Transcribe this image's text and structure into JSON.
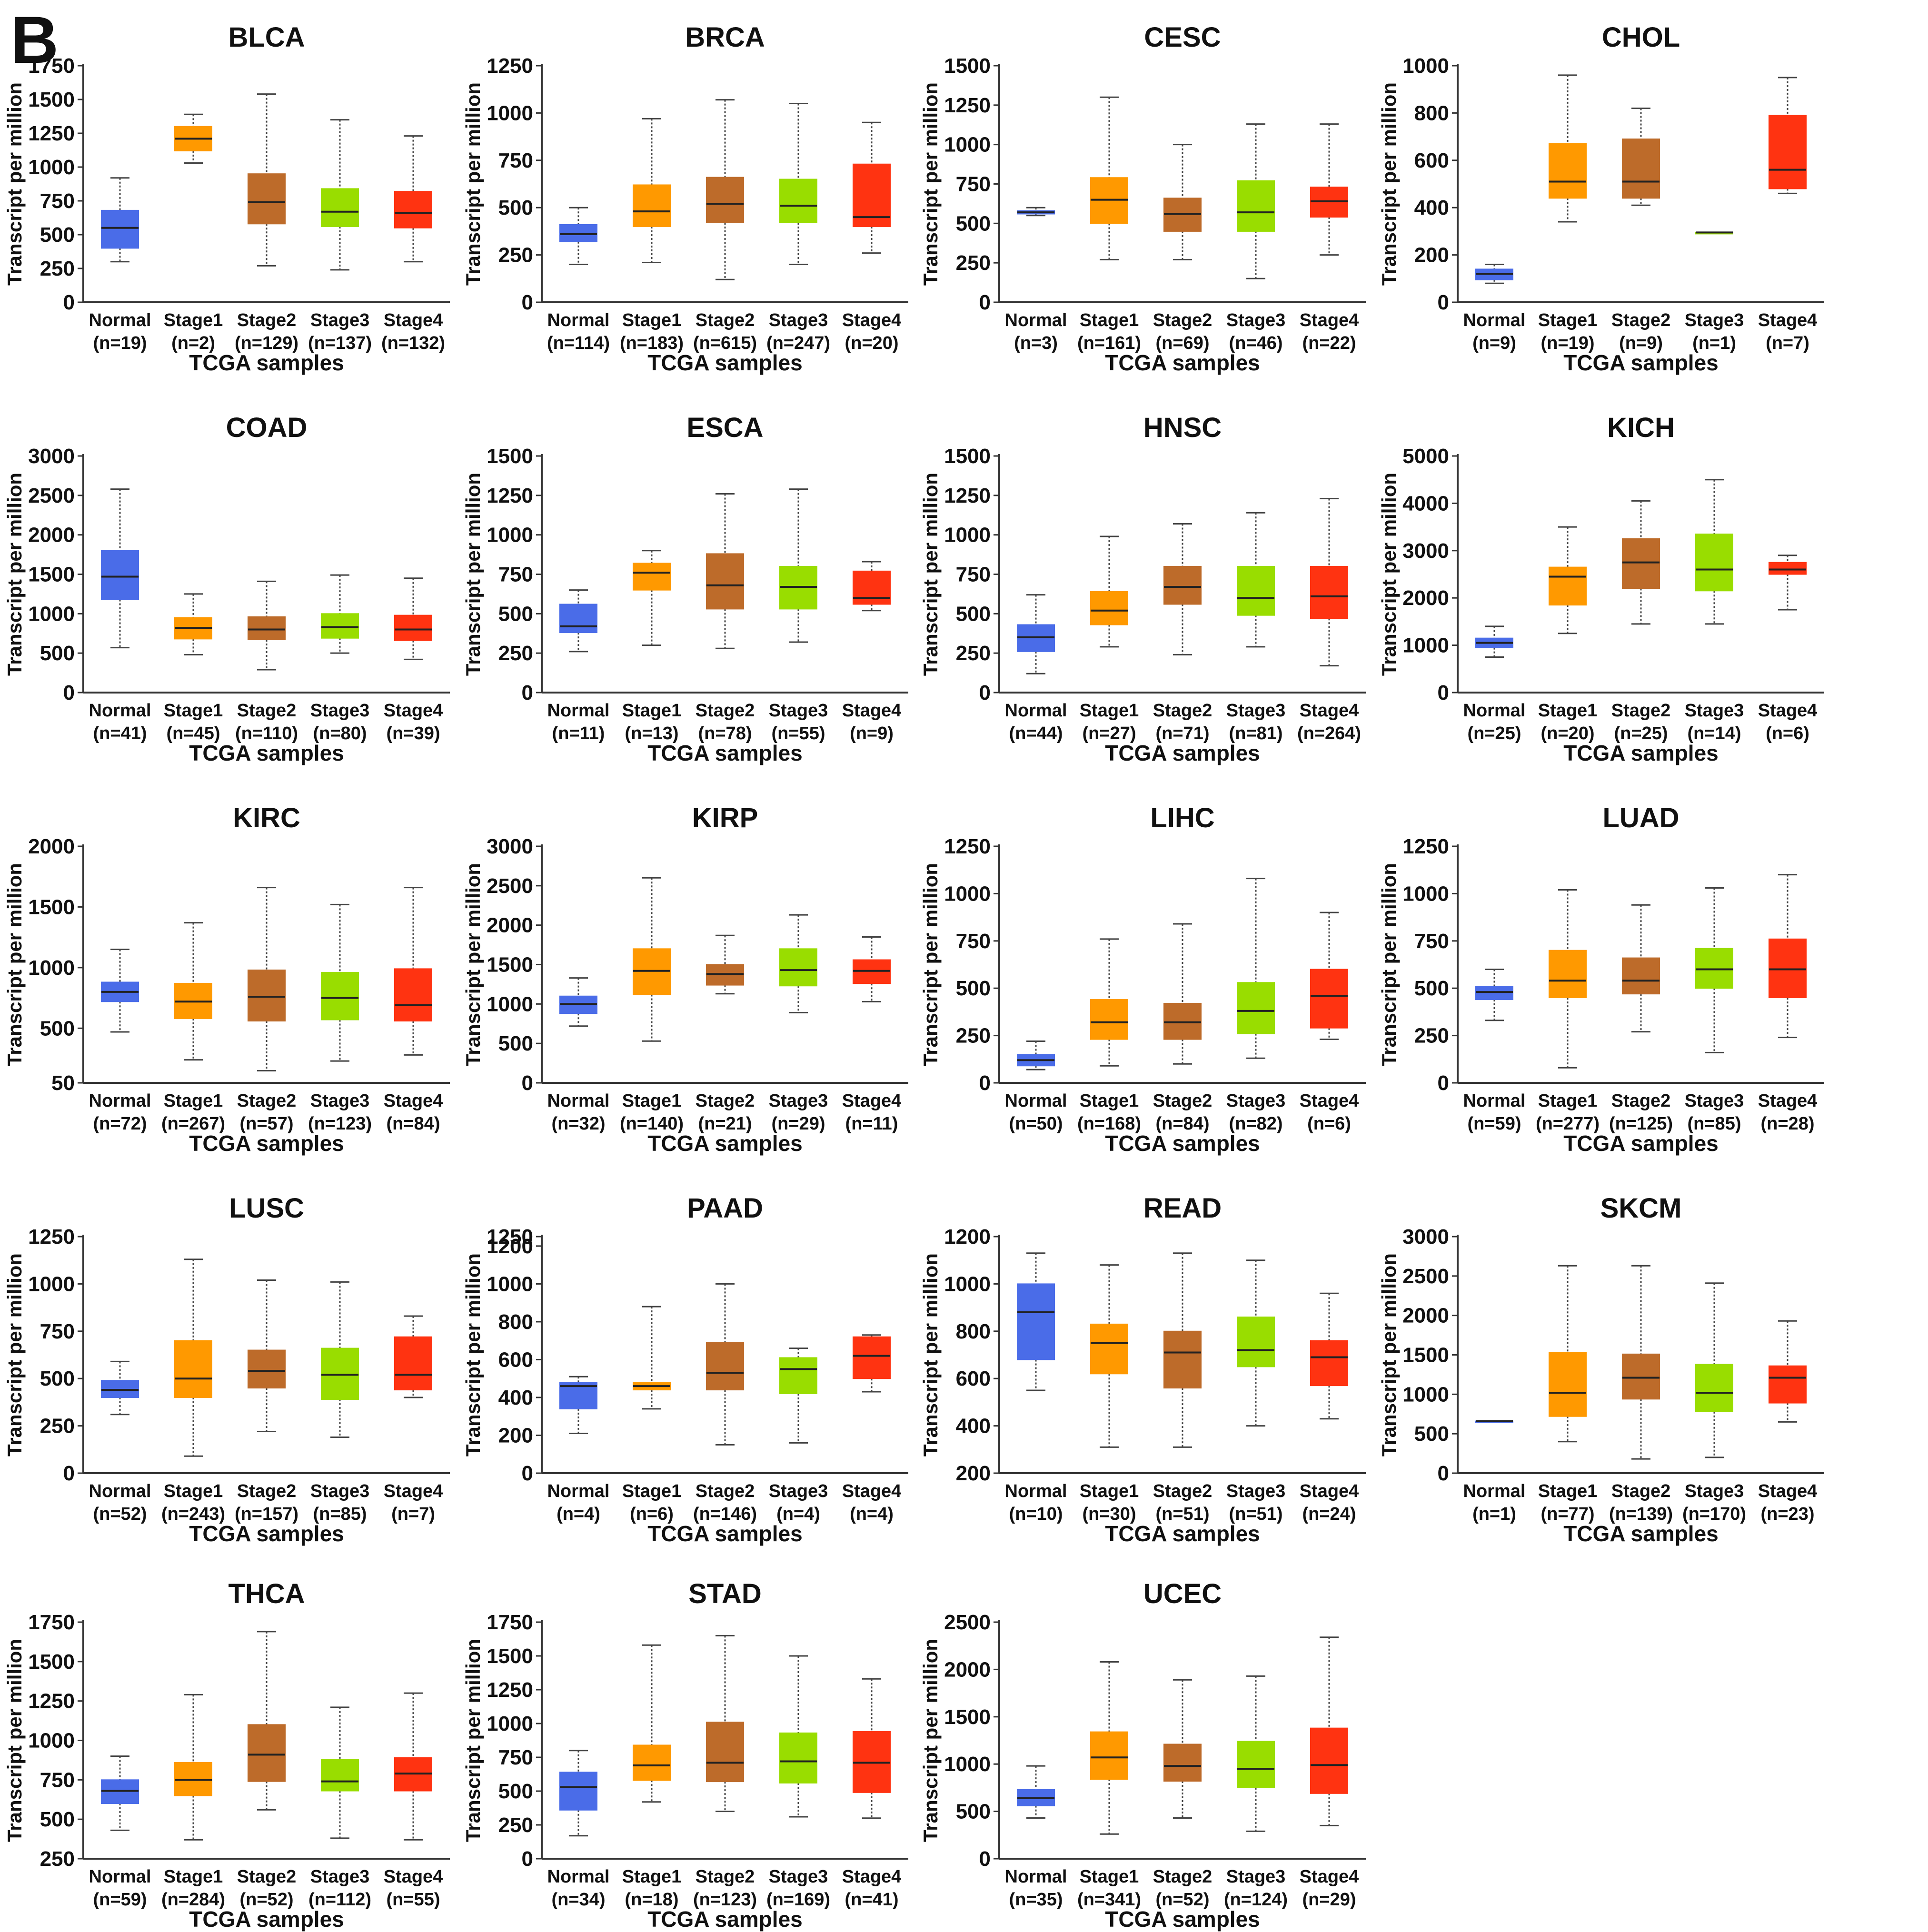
{
  "panel_label": "B",
  "xlabel": "TCGA samples",
  "ylabel": "Transcript per million",
  "colors": {
    "Normal": "#4A6CE8",
    "Stage1": "#FF9900",
    "Stage2": "#BD6B2A",
    "Stage3": "#99DD00",
    "Stage4": "#FF3311",
    "whisker": "#444444",
    "axis": "#333333",
    "median": "#222222"
  },
  "chart_data": [
    {
      "type": "box",
      "title": "BLCA",
      "yticks": [
        0,
        250,
        500,
        750,
        1000,
        1250,
        1500,
        1750
      ],
      "ylim": [
        0,
        1750
      ],
      "categories": [
        "Normal",
        "Stage1",
        "Stage2",
        "Stage3",
        "Stage4"
      ],
      "counts": [
        "(n=19)",
        "(n=2)",
        "(n=129)",
        "(n=137)",
        "(n=132)"
      ],
      "boxes": [
        [
          300,
          400,
          550,
          680,
          920
        ],
        [
          1030,
          1120,
          1210,
          1300,
          1390
        ],
        [
          270,
          580,
          740,
          950,
          1540
        ],
        [
          240,
          560,
          670,
          840,
          1350
        ],
        [
          300,
          550,
          660,
          820,
          1230
        ]
      ]
    },
    {
      "type": "box",
      "title": "BRCA",
      "yticks": [
        0,
        250,
        500,
        750,
        1000,
        1250
      ],
      "ylim": [
        0,
        1250
      ],
      "categories": [
        "Normal",
        "Stage1",
        "Stage2",
        "Stage3",
        "Stage4"
      ],
      "counts": [
        "(n=114)",
        "(n=183)",
        "(n=615)",
        "(n=247)",
        "(n=20)"
      ],
      "boxes": [
        [
          200,
          320,
          360,
          410,
          500
        ],
        [
          210,
          400,
          480,
          620,
          970
        ],
        [
          120,
          420,
          520,
          660,
          1070
        ],
        [
          200,
          420,
          510,
          650,
          1050
        ],
        [
          260,
          400,
          450,
          730,
          950
        ]
      ]
    },
    {
      "type": "box",
      "title": "CESC",
      "yticks": [
        0,
        250,
        500,
        750,
        1000,
        1250,
        1500
      ],
      "ylim": [
        0,
        1500
      ],
      "categories": [
        "Normal",
        "Stage1",
        "Stage2",
        "Stage3",
        "Stage4"
      ],
      "counts": [
        "(n=3)",
        "(n=161)",
        "(n=69)",
        "(n=46)",
        "(n=22)"
      ],
      "boxes": [
        [
          550,
          560,
          570,
          580,
          600
        ],
        [
          270,
          500,
          650,
          790,
          1300
        ],
        [
          270,
          450,
          560,
          660,
          1000
        ],
        [
          150,
          450,
          570,
          770,
          1130
        ],
        [
          300,
          540,
          640,
          730,
          1130
        ]
      ]
    },
    {
      "type": "box",
      "title": "CHOL",
      "yticks": [
        0,
        200,
        400,
        600,
        800,
        1000
      ],
      "ylim": [
        0,
        1000
      ],
      "categories": [
        "Normal",
        "Stage1",
        "Stage2",
        "Stage3",
        "Stage4"
      ],
      "counts": [
        "(n=9)",
        "(n=19)",
        "(n=9)",
        "(n=1)",
        "(n=7)"
      ],
      "boxes": [
        [
          80,
          95,
          120,
          140,
          160
        ],
        [
          340,
          440,
          510,
          670,
          960
        ],
        [
          410,
          440,
          510,
          690,
          820
        ],
        [
          295,
          295,
          295,
          295,
          295
        ],
        [
          460,
          480,
          560,
          790,
          950
        ]
      ]
    },
    {
      "type": "box",
      "title": "COAD",
      "yticks": [
        0,
        500,
        1000,
        1500,
        2000,
        2500,
        3000
      ],
      "ylim": [
        0,
        3000
      ],
      "categories": [
        "Normal",
        "Stage1",
        "Stage2",
        "Stage3",
        "Stage4"
      ],
      "counts": [
        "(n=41)",
        "(n=45)",
        "(n=110)",
        "(n=80)",
        "(n=39)"
      ],
      "boxes": [
        [
          570,
          1180,
          1470,
          1800,
          2580
        ],
        [
          480,
          680,
          820,
          950,
          1250
        ],
        [
          290,
          670,
          800,
          960,
          1410
        ],
        [
          500,
          690,
          830,
          1000,
          1490
        ],
        [
          420,
          660,
          800,
          980,
          1450
        ]
      ]
    },
    {
      "type": "box",
      "title": "ESCA",
      "yticks": [
        0,
        250,
        500,
        750,
        1000,
        1250,
        1500
      ],
      "ylim": [
        0,
        1500
      ],
      "categories": [
        "Normal",
        "Stage1",
        "Stage2",
        "Stage3",
        "Stage4"
      ],
      "counts": [
        "(n=11)",
        "(n=13)",
        "(n=78)",
        "(n=55)",
        "(n=9)"
      ],
      "boxes": [
        [
          260,
          380,
          420,
          560,
          650
        ],
        [
          300,
          650,
          760,
          820,
          900
        ],
        [
          280,
          530,
          680,
          880,
          1260
        ],
        [
          320,
          530,
          670,
          800,
          1290
        ],
        [
          520,
          560,
          600,
          770,
          830
        ]
      ]
    },
    {
      "type": "box",
      "title": "HNSC",
      "yticks": [
        0,
        250,
        500,
        750,
        1000,
        1250,
        1500
      ],
      "ylim": [
        0,
        1500
      ],
      "categories": [
        "Normal",
        "Stage1",
        "Stage2",
        "Stage3",
        "Stage4"
      ],
      "counts": [
        "(n=44)",
        "(n=27)",
        "(n=71)",
        "(n=81)",
        "(n=264)"
      ],
      "boxes": [
        [
          120,
          260,
          350,
          430,
          620
        ],
        [
          290,
          430,
          520,
          640,
          990
        ],
        [
          240,
          560,
          670,
          800,
          1070
        ],
        [
          290,
          490,
          600,
          800,
          1140
        ],
        [
          170,
          470,
          610,
          800,
          1230
        ]
      ]
    },
    {
      "type": "box",
      "title": "KICH",
      "yticks": [
        0,
        1000,
        2000,
        3000,
        4000,
        5000
      ],
      "ylim": [
        0,
        5000
      ],
      "categories": [
        "Normal",
        "Stage1",
        "Stage2",
        "Stage3",
        "Stage4"
      ],
      "counts": [
        "(n=25)",
        "(n=20)",
        "(n=25)",
        "(n=14)",
        "(n=6)"
      ],
      "boxes": [
        [
          750,
          950,
          1050,
          1150,
          1400
        ],
        [
          1250,
          1850,
          2450,
          2650,
          3500
        ],
        [
          1450,
          2200,
          2750,
          3250,
          4050
        ],
        [
          1450,
          2150,
          2600,
          3350,
          4500
        ],
        [
          1750,
          2500,
          2600,
          2750,
          2900
        ]
      ]
    },
    {
      "type": "box",
      "title": "KIRC",
      "yticks": [
        50,
        500,
        1000,
        1500,
        2000
      ],
      "ylim": [
        50,
        2000
      ],
      "categories": [
        "Normal",
        "Stage1",
        "Stage2",
        "Stage3",
        "Stage4"
      ],
      "counts": [
        "(n=72)",
        "(n=267)",
        "(n=57)",
        "(n=123)",
        "(n=84)"
      ],
      "boxes": [
        [
          470,
          720,
          800,
          880,
          1150
        ],
        [
          240,
          580,
          720,
          870,
          1370
        ],
        [
          150,
          560,
          760,
          980,
          1660
        ],
        [
          230,
          570,
          750,
          960,
          1520
        ],
        [
          280,
          560,
          690,
          990,
          1660
        ]
      ]
    },
    {
      "type": "box",
      "title": "KIRP",
      "yticks": [
        0,
        500,
        1000,
        1500,
        2000,
        2500,
        3000
      ],
      "ylim": [
        0,
        3000
      ],
      "categories": [
        "Normal",
        "Stage1",
        "Stage2",
        "Stage3",
        "Stage4"
      ],
      "counts": [
        "(n=32)",
        "(n=140)",
        "(n=21)",
        "(n=29)",
        "(n=11)"
      ],
      "boxes": [
        [
          720,
          880,
          1000,
          1100,
          1330
        ],
        [
          530,
          1120,
          1420,
          1700,
          2600
        ],
        [
          1130,
          1240,
          1380,
          1500,
          1870
        ],
        [
          890,
          1230,
          1430,
          1700,
          2130
        ],
        [
          1030,
          1260,
          1420,
          1560,
          1850
        ]
      ]
    },
    {
      "type": "box",
      "title": "LIHC",
      "yticks": [
        0,
        250,
        500,
        750,
        1000,
        1250
      ],
      "ylim": [
        0,
        1250
      ],
      "categories": [
        "Normal",
        "Stage1",
        "Stage2",
        "Stage3",
        "Stage4"
      ],
      "counts": [
        "(n=50)",
        "(n=168)",
        "(n=84)",
        "(n=82)",
        "(n=6)"
      ],
      "boxes": [
        [
          70,
          90,
          120,
          150,
          220
        ],
        [
          90,
          230,
          320,
          440,
          760
        ],
        [
          100,
          230,
          320,
          420,
          840
        ],
        [
          130,
          260,
          380,
          530,
          1080
        ],
        [
          230,
          290,
          460,
          600,
          900
        ]
      ]
    },
    {
      "type": "box",
      "title": "LUAD",
      "yticks": [
        0,
        250,
        500,
        750,
        1000,
        1250
      ],
      "ylim": [
        0,
        1250
      ],
      "categories": [
        "Normal",
        "Stage1",
        "Stage2",
        "Stage3",
        "Stage4"
      ],
      "counts": [
        "(n=59)",
        "(n=277)",
        "(n=125)",
        "(n=85)",
        "(n=28)"
      ],
      "boxes": [
        [
          330,
          440,
          480,
          510,
          600
        ],
        [
          80,
          450,
          540,
          700,
          1020
        ],
        [
          270,
          470,
          540,
          660,
          940
        ],
        [
          160,
          500,
          600,
          710,
          1030
        ],
        [
          240,
          450,
          600,
          760,
          1100
        ]
      ]
    },
    {
      "type": "box",
      "title": "LUSC",
      "yticks": [
        0,
        250,
        500,
        750,
        1000,
        1250
      ],
      "ylim": [
        0,
        1250
      ],
      "categories": [
        "Normal",
        "Stage1",
        "Stage2",
        "Stage3",
        "Stage4"
      ],
      "counts": [
        "(n=52)",
        "(n=243)",
        "(n=157)",
        "(n=85)",
        "(n=7)"
      ],
      "boxes": [
        [
          310,
          400,
          440,
          490,
          590
        ],
        [
          90,
          400,
          500,
          700,
          1130
        ],
        [
          220,
          450,
          540,
          650,
          1020
        ],
        [
          190,
          390,
          520,
          660,
          1010
        ],
        [
          400,
          440,
          520,
          720,
          830
        ]
      ]
    },
    {
      "type": "box",
      "title": "PAAD",
      "yticks": [
        0,
        200,
        400,
        600,
        800,
        1000,
        1200,
        1250
      ],
      "ylim": [
        0,
        1250
      ],
      "categories": [
        "Normal",
        "Stage1",
        "Stage2",
        "Stage3",
        "Stage4"
      ],
      "counts": [
        "(n=4)",
        "(n=6)",
        "(n=146)",
        "(n=4)",
        "(n=4)"
      ],
      "boxes": [
        [
          210,
          340,
          460,
          480,
          510
        ],
        [
          340,
          440,
          460,
          480,
          880
        ],
        [
          150,
          440,
          530,
          690,
          1000
        ],
        [
          160,
          420,
          550,
          610,
          660
        ],
        [
          430,
          500,
          620,
          720,
          730
        ]
      ]
    },
    {
      "type": "box",
      "title": "READ",
      "yticks": [
        200,
        400,
        600,
        800,
        1000,
        1200
      ],
      "ylim": [
        200,
        1200
      ],
      "categories": [
        "Normal",
        "Stage1",
        "Stage2",
        "Stage3",
        "Stage4"
      ],
      "counts": [
        "(n=10)",
        "(n=30)",
        "(n=51)",
        "(n=51)",
        "(n=24)"
      ],
      "boxes": [
        [
          550,
          680,
          880,
          1000,
          1130
        ],
        [
          310,
          620,
          750,
          830,
          1080
        ],
        [
          310,
          560,
          710,
          800,
          1130
        ],
        [
          400,
          650,
          720,
          860,
          1100
        ],
        [
          430,
          570,
          690,
          760,
          960
        ]
      ]
    },
    {
      "type": "box",
      "title": "SKCM",
      "yticks": [
        0,
        500,
        1000,
        1500,
        2000,
        2500,
        3000
      ],
      "ylim": [
        0,
        3000
      ],
      "categories": [
        "Normal",
        "Stage1",
        "Stage2",
        "Stage3",
        "Stage4"
      ],
      "counts": [
        "(n=1)",
        "(n=77)",
        "(n=139)",
        "(n=170)",
        "(n=23)"
      ],
      "boxes": [
        [
          660,
          660,
          660,
          660,
          660
        ],
        [
          400,
          720,
          1020,
          1530,
          2630
        ],
        [
          180,
          940,
          1210,
          1510,
          2630
        ],
        [
          200,
          780,
          1020,
          1380,
          2410
        ],
        [
          650,
          890,
          1210,
          1360,
          1930
        ]
      ]
    },
    {
      "type": "box",
      "title": "THCA",
      "yticks": [
        250,
        500,
        750,
        1000,
        1250,
        1500,
        1750
      ],
      "ylim": [
        250,
        1750
      ],
      "categories": [
        "Normal",
        "Stage1",
        "Stage2",
        "Stage3",
        "Stage4"
      ],
      "counts": [
        "(n=59)",
        "(n=284)",
        "(n=52)",
        "(n=112)",
        "(n=55)"
      ],
      "boxes": [
        [
          430,
          600,
          680,
          750,
          900
        ],
        [
          370,
          650,
          750,
          860,
          1290
        ],
        [
          560,
          740,
          910,
          1100,
          1690
        ],
        [
          380,
          680,
          740,
          880,
          1210
        ],
        [
          370,
          680,
          790,
          890,
          1300
        ]
      ]
    },
    {
      "type": "box",
      "title": "STAD",
      "yticks": [
        0,
        250,
        500,
        750,
        1000,
        1250,
        1500,
        1750
      ],
      "ylim": [
        0,
        1750
      ],
      "categories": [
        "Normal",
        "Stage1",
        "Stage2",
        "Stage3",
        "Stage4"
      ],
      "counts": [
        "(n=34)",
        "(n=18)",
        "(n=123)",
        "(n=169)",
        "(n=41)"
      ],
      "boxes": [
        [
          170,
          360,
          530,
          640,
          800
        ],
        [
          420,
          580,
          690,
          840,
          1580
        ],
        [
          350,
          570,
          710,
          1010,
          1650
        ],
        [
          310,
          560,
          720,
          930,
          1500
        ],
        [
          300,
          490,
          710,
          940,
          1330
        ]
      ]
    },
    {
      "type": "box",
      "title": "UCEC",
      "yticks": [
        0,
        500,
        1000,
        1500,
        2000,
        2500
      ],
      "ylim": [
        0,
        2500
      ],
      "categories": [
        "Normal",
        "Stage1",
        "Stage2",
        "Stage3",
        "Stage4"
      ],
      "counts": [
        "(n=35)",
        "(n=341)",
        "(n=52)",
        "(n=124)",
        "(n=29)"
      ],
      "boxes": [
        [
          430,
          560,
          640,
          730,
          980
        ],
        [
          260,
          840,
          1070,
          1340,
          2080
        ],
        [
          430,
          820,
          980,
          1210,
          1890
        ],
        [
          290,
          750,
          950,
          1240,
          1930
        ],
        [
          350,
          690,
          990,
          1380,
          2340
        ]
      ]
    }
  ]
}
